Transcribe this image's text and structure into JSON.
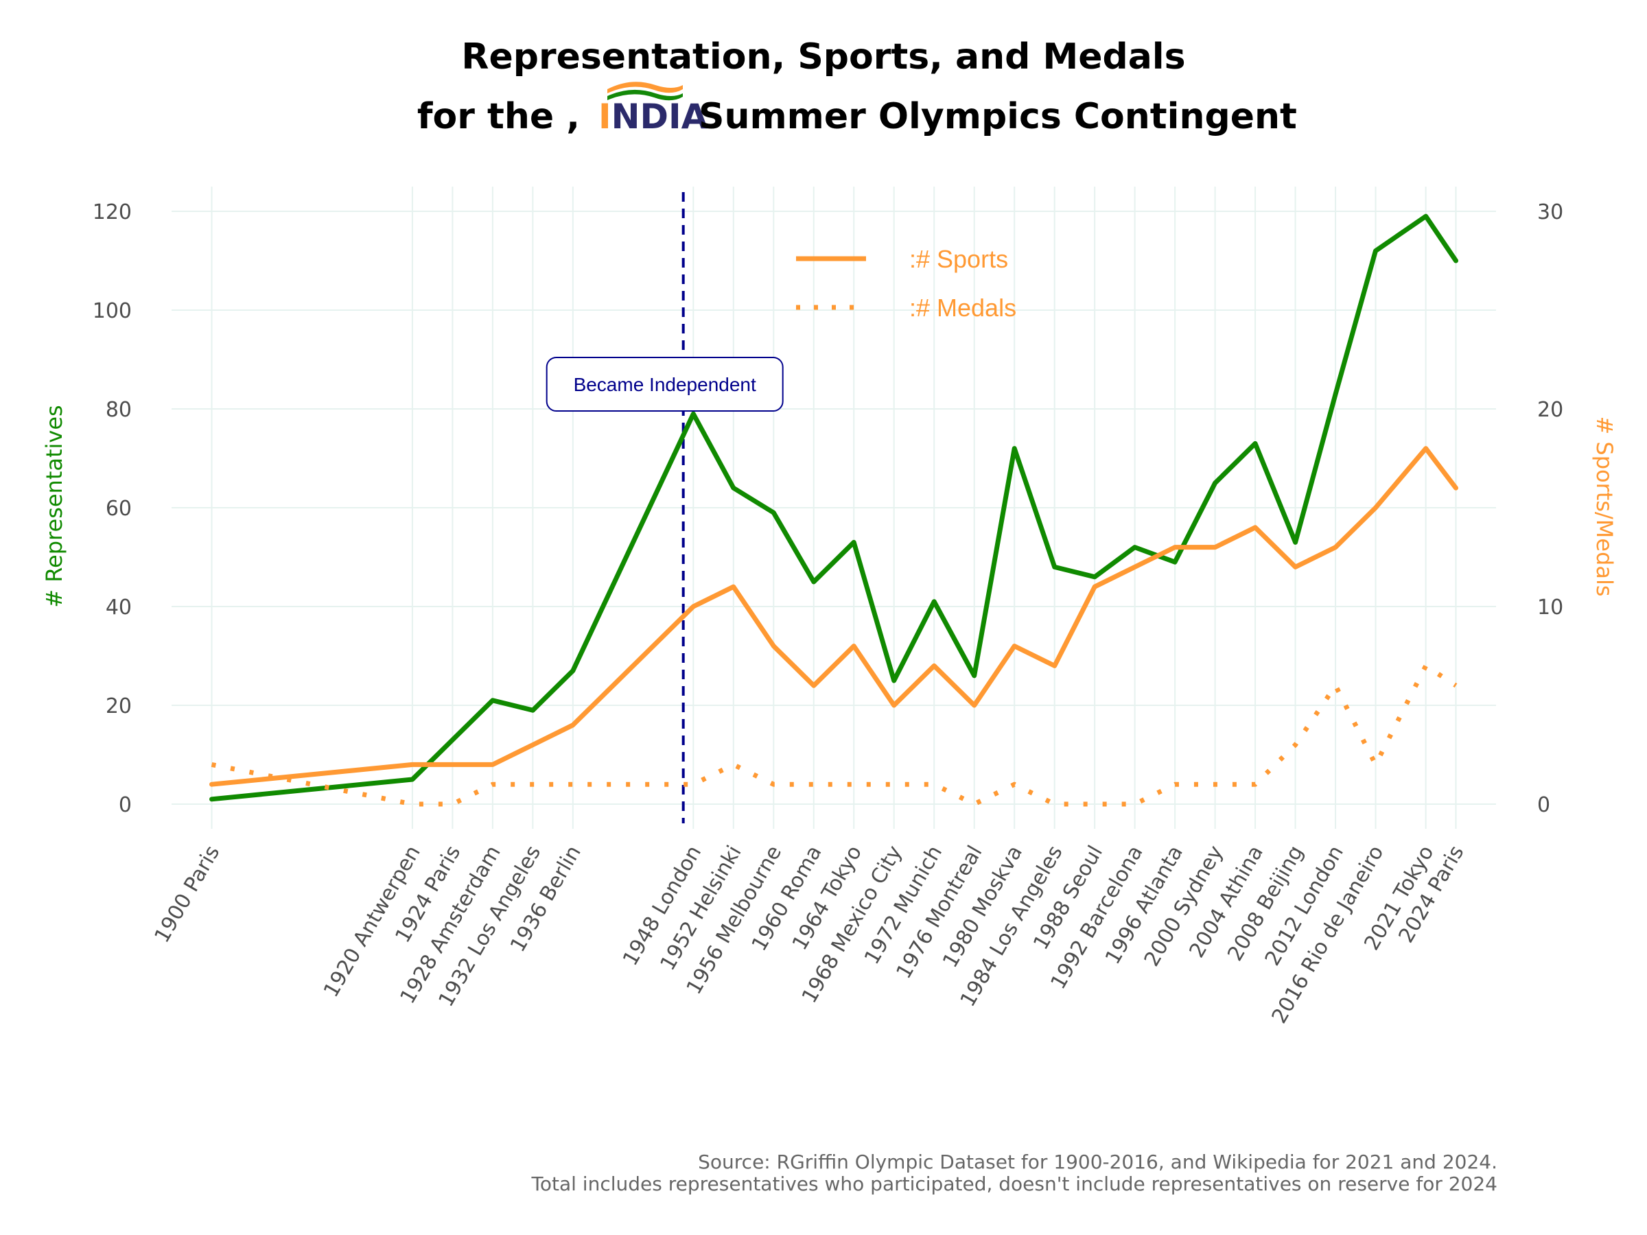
{
  "title": {
    "line1": "Representation, Sports, and Medals",
    "line2_prefix": "for the ,",
    "logo_text": "INDIA",
    "line2_suffix": "Summer Olympics Contingent"
  },
  "caption": {
    "line1": "Source: RGriffin Olympic Dataset for 1900-2016, and Wikipedia for 2021 and 2024.",
    "line2": "Total includes representatives who participated, doesn't include representatives on reserve for 2024"
  },
  "colors": {
    "representatives": "#108a00",
    "sports_medals": "#ff9933",
    "independence": "#00008b",
    "grid": "#e6f2ef",
    "logo_saffron": "#ff9933",
    "logo_green": "#138808",
    "logo_navy": "#2b2a6b"
  },
  "chart_data": {
    "type": "line",
    "x": [
      1900,
      1920,
      1924,
      1928,
      1932,
      1936,
      1948,
      1952,
      1956,
      1960,
      1964,
      1968,
      1972,
      1976,
      1980,
      1984,
      1988,
      1992,
      1996,
      2000,
      2004,
      2008,
      2012,
      2016,
      2021,
      2024
    ],
    "x_tick_labels": [
      "1900 Paris",
      "1920 Antwerpen",
      "1924 Paris",
      "1928 Amsterdam",
      "1932 Los Angeles",
      "1936 Berlin",
      "1948 London",
      "1952 Helsinki",
      "1956 Melbourne",
      "1960 Roma",
      "1964 Tokyo",
      "1968 Mexico City",
      "1972 Munich",
      "1976 Montreal",
      "1980 Moskva",
      "1984 Los Angeles",
      "1988 Seoul",
      "1992 Barcelona",
      "1996 Atlanta",
      "2000 Sydney",
      "2004 Athina",
      "2008 Beijing",
      "2012 London",
      "2016 Rio de Janeiro",
      "2021 Tokyo",
      "2024 Paris"
    ],
    "series": [
      {
        "name": "# Representatives",
        "axis": "left",
        "style": "solid",
        "values": [
          1,
          5,
          13,
          21,
          19,
          27,
          79,
          64,
          59,
          45,
          53,
          25,
          41,
          26,
          72,
          48,
          46,
          52,
          49,
          65,
          73,
          53,
          83,
          112,
          119,
          110
        ]
      },
      {
        "name": "# Sports",
        "axis": "right",
        "style": "solid",
        "values": [
          1,
          2,
          2,
          2,
          3,
          4,
          10,
          11,
          8,
          6,
          8,
          5,
          7,
          5,
          8,
          7,
          11,
          12,
          13,
          13,
          14,
          12,
          13,
          15,
          18,
          16
        ]
      },
      {
        "name": "# Medals",
        "axis": "right",
        "style": "dotted",
        "values": [
          2,
          0,
          0,
          1,
          1,
          1,
          1,
          2,
          1,
          1,
          1,
          1,
          1,
          0,
          1,
          0,
          0,
          0,
          1,
          1,
          1,
          3,
          6,
          2,
          7,
          6
        ]
      }
    ],
    "ylabel_left": "# Representatives",
    "ylabel_right": "# Sports/Medals",
    "ylim_left": [
      -5,
      125
    ],
    "ylim_right": [
      -1.25,
      31.25
    ],
    "yticks_left": [
      0,
      20,
      40,
      60,
      80,
      100,
      120
    ],
    "yticks_right": [
      0,
      10,
      20,
      30
    ],
    "legend": {
      "position": "top-center",
      "entries": [
        {
          "label": ":# Sports",
          "style": "solid"
        },
        {
          "label": ":# Medals",
          "style": "dotted"
        }
      ]
    },
    "annotation": {
      "text": "Became Independent",
      "x": 1947,
      "y": 85,
      "line_x": 1947,
      "line_style": "dashed"
    },
    "grid": true
  }
}
